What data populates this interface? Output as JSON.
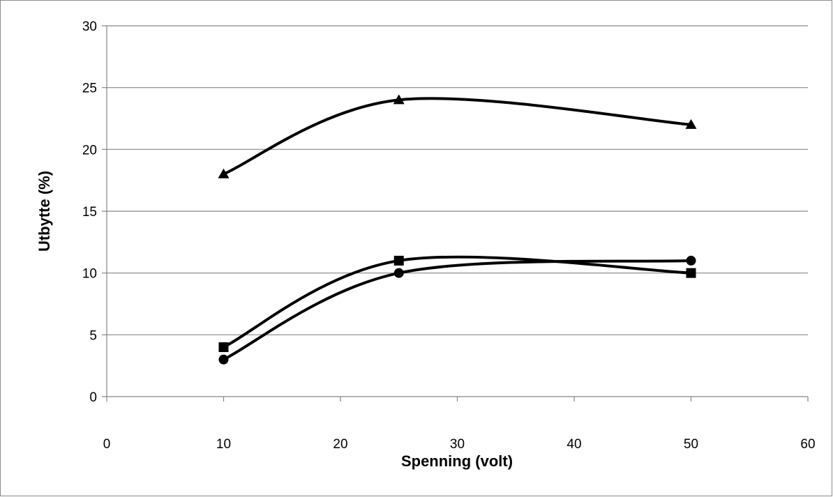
{
  "chart_data": {
    "type": "line",
    "title": "",
    "xlabel": "Spenning (volt)",
    "ylabel": "Utbytte (%)",
    "xlim": [
      0,
      60
    ],
    "ylim": [
      0,
      30
    ],
    "xticks": [
      0,
      10,
      20,
      30,
      40,
      50,
      60
    ],
    "yticks": [
      0,
      5,
      10,
      15,
      20,
      25,
      30
    ],
    "grid": "horizontal",
    "legend": "none",
    "smooth": true,
    "line_color": "#000000",
    "series": [
      {
        "marker": "triangle",
        "x": [
          10,
          25,
          50
        ],
        "y": [
          18,
          24,
          22
        ]
      },
      {
        "marker": "square",
        "x": [
          10,
          25,
          50
        ],
        "y": [
          4,
          11,
          10
        ]
      },
      {
        "marker": "circle",
        "x": [
          10,
          25,
          50
        ],
        "y": [
          3,
          10,
          11
        ]
      }
    ]
  }
}
